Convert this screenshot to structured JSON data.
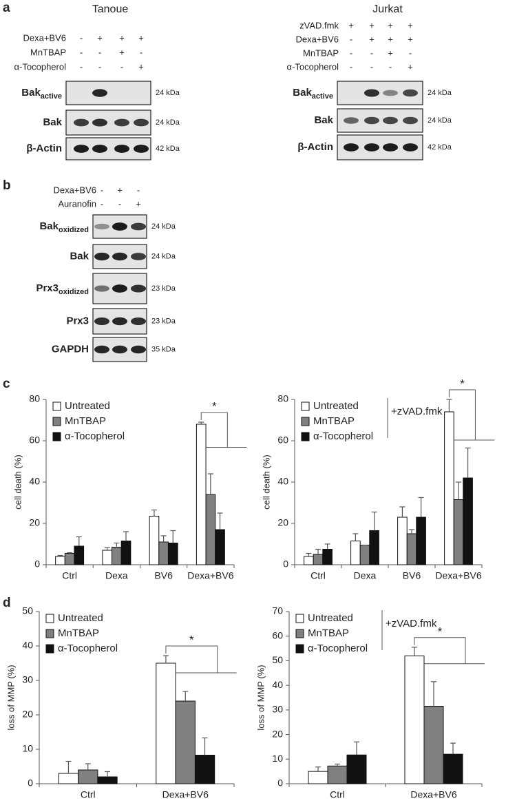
{
  "panel_labels": [
    "a",
    "b",
    "c",
    "d"
  ],
  "blots_a": [
    {
      "title": "Tanoue",
      "conditions": [
        {
          "label": "Dexa+BV6",
          "signs": [
            "-",
            "+",
            "+",
            "+"
          ]
        },
        {
          "label": "MnTBAP",
          "signs": [
            "-",
            "-",
            "+",
            "-"
          ]
        },
        {
          "label": "α-Tocopherol",
          "signs": [
            "-",
            "-",
            "-",
            "+"
          ]
        }
      ],
      "bands": [
        {
          "name": "Bak",
          "sub": "active",
          "size": "24 kDa"
        },
        {
          "name": "Bak",
          "size": "24 kDa"
        },
        {
          "name": "β-Actin",
          "size": "42 kDa"
        }
      ]
    },
    {
      "title": "Jurkat",
      "conditions": [
        {
          "label": "zVAD.fmk",
          "signs": [
            "+",
            "+",
            "+",
            "+"
          ]
        },
        {
          "label": "Dexa+BV6",
          "signs": [
            "-",
            "+",
            "+",
            "+"
          ]
        },
        {
          "label": "MnTBAP",
          "signs": [
            "-",
            "-",
            "+",
            "-"
          ]
        },
        {
          "label": "α-Tocopherol",
          "signs": [
            "-",
            "-",
            "-",
            "+"
          ]
        }
      ],
      "bands": [
        {
          "name": "Bak",
          "sub": "active",
          "size": "24 kDa"
        },
        {
          "name": "Bak",
          "size": "24 kDa"
        },
        {
          "name": "β-Actin",
          "size": "42 kDa"
        }
      ]
    }
  ],
  "blot_b": {
    "conditions": [
      {
        "label": "Dexa+BV6",
        "signs": [
          "-",
          "+",
          "-"
        ]
      },
      {
        "label": "Auranofin",
        "signs": [
          "-",
          "-",
          "+"
        ]
      }
    ],
    "bands": [
      {
        "name": "Bak",
        "sub": "oxidized",
        "size": "24 kDa"
      },
      {
        "name": "Bak",
        "size": "24 kDa"
      },
      {
        "name": "Prx3",
        "sub": "oxidized",
        "size": "23 kDa"
      },
      {
        "name": "Prx3",
        "size": "23 kDa"
      },
      {
        "name": "GAPDH",
        "size": "35 kDa"
      }
    ]
  },
  "chart_data": [
    {
      "type": "bar",
      "y_label": "cell death (%)",
      "categories": [
        "Ctrl",
        "Dexa",
        "BV6",
        "Dexa+BV6"
      ],
      "series": [
        {
          "name": "Untreated",
          "color": "#ffffff",
          "values": [
            4,
            7,
            23.5,
            68
          ],
          "errors": [
            0.5,
            1.3,
            3,
            1
          ]
        },
        {
          "name": "MnTBAP",
          "color": "#808080",
          "values": [
            5.5,
            8.5,
            11,
            34
          ],
          "errors": [
            0.3,
            2,
            3,
            10
          ]
        },
        {
          "name": "α-Tocopherol",
          "color": "#111111",
          "values": [
            9,
            11.5,
            10.5,
            17
          ],
          "errors": [
            4.5,
            4.5,
            6,
            8
          ]
        }
      ],
      "ylim": [
        0,
        80
      ],
      "yticks": [
        0,
        20,
        40,
        60,
        80
      ],
      "annotation": "*",
      "legend": "upper left"
    },
    {
      "type": "bar",
      "y_label": "cell death (%)",
      "condition_label": "+zVAD.fmk",
      "categories": [
        "Ctrl",
        "Dexa",
        "BV6",
        "Dexa+BV6"
      ],
      "series": [
        {
          "name": "Untreated",
          "color": "#ffffff",
          "values": [
            4,
            11.5,
            23,
            74
          ],
          "errors": [
            1.5,
            3.5,
            5,
            6
          ]
        },
        {
          "name": "MnTBAP",
          "color": "#808080",
          "values": [
            5,
            9.5,
            15,
            31.5
          ],
          "errors": [
            2.5,
            0,
            2,
            8.5
          ]
        },
        {
          "name": "α-Tocopherol",
          "color": "#111111",
          "values": [
            7.5,
            16.5,
            23,
            42
          ],
          "errors": [
            2.5,
            9,
            9.5,
            14.5
          ]
        }
      ],
      "ylim": [
        0,
        80
      ],
      "yticks": [
        0,
        20,
        40,
        60,
        80
      ],
      "annotation": "*",
      "legend": "upper left"
    },
    {
      "type": "bar",
      "y_label": "loss of MMP (%)",
      "categories": [
        "Ctrl",
        "Dexa+BV6"
      ],
      "series": [
        {
          "name": "Untreated",
          "color": "#ffffff",
          "values": [
            3,
            35
          ],
          "errors": [
            3.5,
            2.2
          ]
        },
        {
          "name": "MnTBAP",
          "color": "#808080",
          "values": [
            4,
            24
          ],
          "errors": [
            1.8,
            2.8
          ]
        },
        {
          "name": "α-Tocopherol",
          "color": "#111111",
          "values": [
            2,
            8.3
          ],
          "errors": [
            1.5,
            5
          ]
        }
      ],
      "ylim": [
        0,
        50
      ],
      "yticks": [
        0,
        10,
        20,
        30,
        40,
        50
      ],
      "annotation": "*",
      "legend": "upper left"
    },
    {
      "type": "bar",
      "y_label": "loss of MMP (%)",
      "condition_label": "+zVAD.fmk",
      "categories": [
        "Ctrl",
        "Dexa+BV6"
      ],
      "series": [
        {
          "name": "Untreated",
          "color": "#ffffff",
          "values": [
            5,
            52
          ],
          "errors": [
            1.8,
            3.5
          ]
        },
        {
          "name": "MnTBAP",
          "color": "#808080",
          "values": [
            7.2,
            31.5
          ],
          "errors": [
            0.8,
            10
          ]
        },
        {
          "name": "α-Tocopherol",
          "color": "#111111",
          "values": [
            11.7,
            12
          ],
          "errors": [
            5.3,
            4.5
          ]
        }
      ],
      "ylim": [
        0,
        70
      ],
      "yticks": [
        0,
        10,
        20,
        30,
        40,
        50,
        60,
        70
      ],
      "annotation": "*",
      "legend": "upper left"
    }
  ]
}
